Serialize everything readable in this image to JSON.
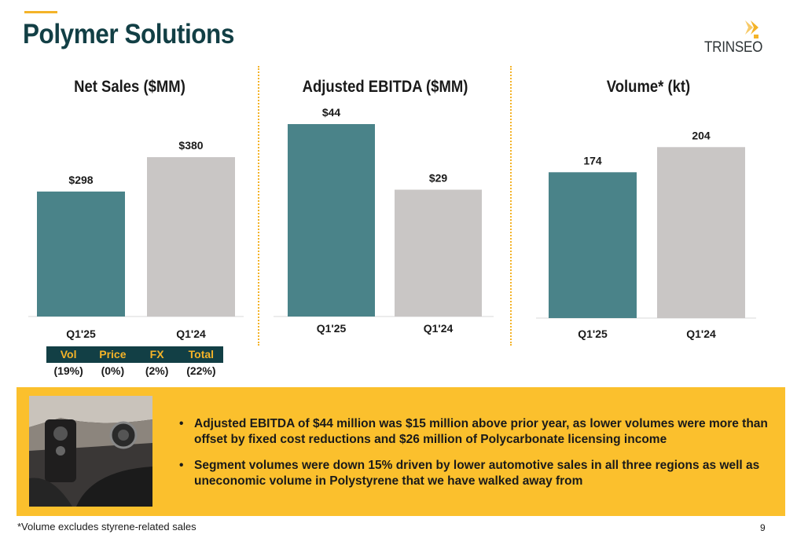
{
  "header": {
    "title": "Polymer Solutions",
    "logo_text": "TRINSEO",
    "accent_color": "#f4b328",
    "title_color": "#123f45"
  },
  "chart_data": [
    {
      "type": "bar",
      "title": "Net Sales ($MM)",
      "categories": [
        "Q1'25",
        "Q1'24"
      ],
      "values": [
        298,
        380
      ],
      "value_labels": [
        "$298",
        "$380"
      ],
      "bar_colors": [
        "#4a8389",
        "#c9c6c5"
      ],
      "ylim": [
        0,
        500
      ]
    },
    {
      "type": "bar",
      "title": "Adjusted EBITDA ($MM)",
      "categories": [
        "Q1'25",
        "Q1'24"
      ],
      "values": [
        44,
        29
      ],
      "value_labels": [
        "$44",
        "$29"
      ],
      "bar_colors": [
        "#4a8389",
        "#c9c6c5"
      ],
      "ylim": [
        0,
        44
      ]
    },
    {
      "type": "bar",
      "title": "Volume* (kt)",
      "categories": [
        "Q1'25",
        "Q1'24"
      ],
      "values": [
        174,
        204
      ],
      "value_labels": [
        "174",
        "204"
      ],
      "bar_colors": [
        "#4a8389",
        "#c9c6c5"
      ],
      "ylim": [
        0,
        253
      ]
    }
  ],
  "bridge": {
    "headers": [
      "Vol",
      "Price",
      "FX",
      "Total"
    ],
    "values": [
      "(19%)",
      "(0%)",
      "(2%)",
      "(22%)"
    ]
  },
  "callout": {
    "bullets": [
      "Adjusted EBITDA of $44 million was $15 million above prior year, as lower volumes were more than offset by fixed cost reductions and $26 million of Polycarbonate licensing income",
      "Segment volumes were down 15% driven by lower automotive sales in all three regions as well as uneconomic volume in Polystyrene that we have walked away from"
    ],
    "background_color": "#fbc02d"
  },
  "footnote": "*Volume excludes styrene-related sales",
  "page_number": "9"
}
